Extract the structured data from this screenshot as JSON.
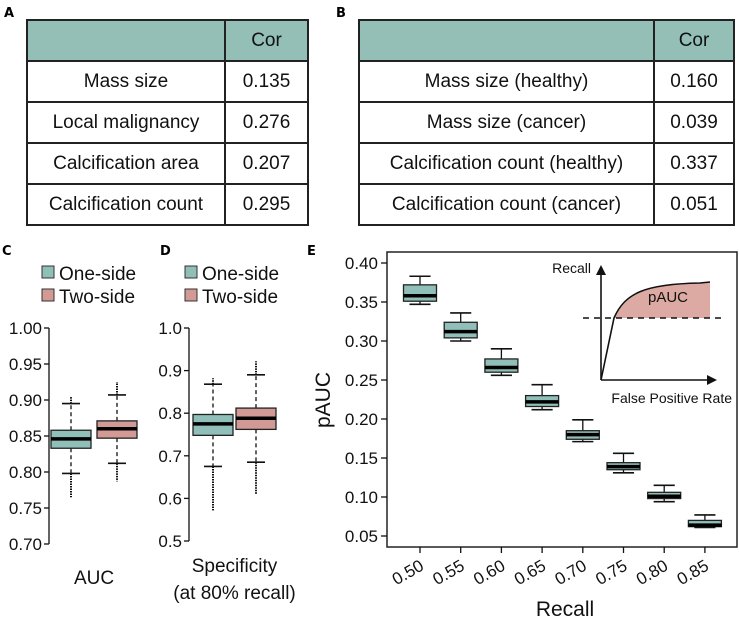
{
  "panels": {
    "a": "A",
    "b": "B",
    "c": "C",
    "d": "D",
    "e": "E"
  },
  "table_a": {
    "header": [
      "",
      "Cor"
    ],
    "rows": [
      {
        "label": "Mass size",
        "cor": "0.135"
      },
      {
        "label": "Local malignancy",
        "cor": "0.276"
      },
      {
        "label": "Calcification area",
        "cor": "0.207"
      },
      {
        "label": "Calcification count",
        "cor": "0.295"
      }
    ]
  },
  "table_b": {
    "header": [
      "",
      "Cor"
    ],
    "rows": [
      {
        "label": "Mass size (healthy)",
        "cor": "0.160"
      },
      {
        "label": "Mass size (cancer)",
        "cor": "0.039"
      },
      {
        "label": "Calcification count (healthy)",
        "cor": "0.337"
      },
      {
        "label": "Calcification count (cancer)",
        "cor": "0.051"
      }
    ]
  },
  "colors": {
    "one_side": "#8fbfb8",
    "two_side": "#d29a94",
    "header": "#93bfb7",
    "pauc_fill": "#dcaaa2"
  },
  "chart_data": [
    {
      "type": "box",
      "panel": "C",
      "xlabel": "AUC",
      "legend": [
        "One-side",
        "Two-side"
      ],
      "legend_placement": "top",
      "ylim": [
        0.7,
        1.0
      ],
      "yticks": [
        "0.70",
        "0.75",
        "0.80",
        "0.85",
        "0.90",
        "0.95",
        "1.00"
      ],
      "series": [
        {
          "name": "One-side",
          "whisker_low": 0.798,
          "q1": 0.833,
          "median": 0.846,
          "q3": 0.858,
          "whisker_high": 0.895,
          "outlier_low_min": 0.765,
          "outlier_high_max": 0.905
        },
        {
          "name": "Two-side",
          "whisker_low": 0.812,
          "q1": 0.847,
          "median": 0.86,
          "q3": 0.871,
          "whisker_high": 0.907,
          "outlier_low_min": 0.787,
          "outlier_high_max": 0.925
        }
      ]
    },
    {
      "type": "box",
      "panel": "D",
      "xlabel": "Specificity",
      "xlabel2": "(at 80% recall)",
      "legend": [
        "One-side",
        "Two-side"
      ],
      "legend_placement": "top",
      "ylim": [
        0.5,
        1.0
      ],
      "yticks": [
        "0.5",
        "0.6",
        "0.7",
        "0.8",
        "0.9",
        "1.0"
      ],
      "series": [
        {
          "name": "One-side",
          "whisker_low": 0.675,
          "q1": 0.748,
          "median": 0.775,
          "q3": 0.797,
          "whisker_high": 0.868,
          "outlier_low_min": 0.572,
          "outlier_high_max": 0.882
        },
        {
          "name": "Two-side",
          "whisker_low": 0.685,
          "q1": 0.762,
          "median": 0.788,
          "q3": 0.812,
          "whisker_high": 0.89,
          "outlier_low_min": 0.61,
          "outlier_high_max": 0.922
        }
      ]
    },
    {
      "type": "box",
      "panel": "E",
      "xlabel": "Recall",
      "ylabel": "pAUC",
      "ylim": [
        0.05,
        0.4
      ],
      "yticks": [
        "0.05",
        "0.10",
        "0.15",
        "0.20",
        "0.25",
        "0.30",
        "0.35",
        "0.40"
      ],
      "categories": [
        "0.50",
        "0.55",
        "0.60",
        "0.65",
        "0.70",
        "0.75",
        "0.80",
        "0.85"
      ],
      "boxes": [
        {
          "whisker_low": 0.347,
          "q1": 0.351,
          "median": 0.358,
          "q3": 0.372,
          "whisker_high": 0.383
        },
        {
          "whisker_low": 0.3,
          "q1": 0.304,
          "median": 0.312,
          "q3": 0.324,
          "whisker_high": 0.336
        },
        {
          "whisker_low": 0.256,
          "q1": 0.26,
          "median": 0.266,
          "q3": 0.277,
          "whisker_high": 0.29
        },
        {
          "whisker_low": 0.212,
          "q1": 0.216,
          "median": 0.222,
          "q3": 0.23,
          "whisker_high": 0.244
        },
        {
          "whisker_low": 0.171,
          "q1": 0.174,
          "median": 0.18,
          "q3": 0.185,
          "whisker_high": 0.199
        },
        {
          "whisker_low": 0.131,
          "q1": 0.135,
          "median": 0.139,
          "q3": 0.144,
          "whisker_high": 0.156
        },
        {
          "whisker_low": 0.094,
          "q1": 0.098,
          "median": 0.101,
          "q3": 0.106,
          "whisker_high": 0.115
        },
        {
          "whisker_low": 0.061,
          "q1": 0.062,
          "median": 0.064,
          "q3": 0.07,
          "whisker_high": 0.077
        }
      ],
      "inset": {
        "y_label": "Recall",
        "x_label": "False Positive Rate",
        "area_label": "pAUC"
      }
    }
  ]
}
